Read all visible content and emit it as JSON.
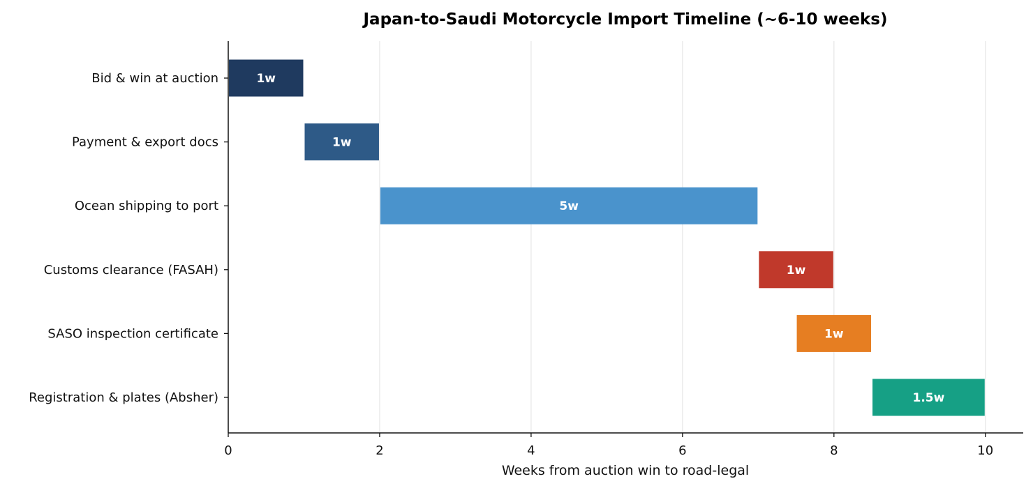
{
  "chart_data": {
    "type": "bar",
    "orientation": "horizontal-gantt",
    "title": "Japan-to-Saudi Motorcycle Import Timeline (~6-10 weeks)",
    "xlabel": "Weeks from auction win to road-legal",
    "ylabel": "",
    "xlim": [
      0,
      10.5
    ],
    "x_ticks": [
      "0",
      "2",
      "4",
      "6",
      "8",
      "10"
    ],
    "x_tick_values": [
      0,
      2,
      4,
      6,
      8,
      10
    ],
    "grid": "vertical",
    "tasks": [
      {
        "label": "Bid & win at auction",
        "start": 0,
        "duration": 1,
        "bar_label": "1w",
        "color": "#1f3a5f"
      },
      {
        "label": "Payment & export docs",
        "start": 1,
        "duration": 1,
        "bar_label": "1w",
        "color": "#2e5a87"
      },
      {
        "label": "Ocean shipping to port",
        "start": 2,
        "duration": 5,
        "bar_label": "5w",
        "color": "#4a93cc"
      },
      {
        "label": "Customs clearance (FASAH)",
        "start": 7,
        "duration": 1,
        "bar_label": "1w",
        "color": "#c0392b"
      },
      {
        "label": "SASO inspection certificate",
        "start": 7.5,
        "duration": 1,
        "bar_label": "1w",
        "color": "#e67e22"
      },
      {
        "label": "Registration & plates (Absher)",
        "start": 8.5,
        "duration": 1.5,
        "bar_label": "1.5w",
        "color": "#16a085"
      }
    ]
  }
}
